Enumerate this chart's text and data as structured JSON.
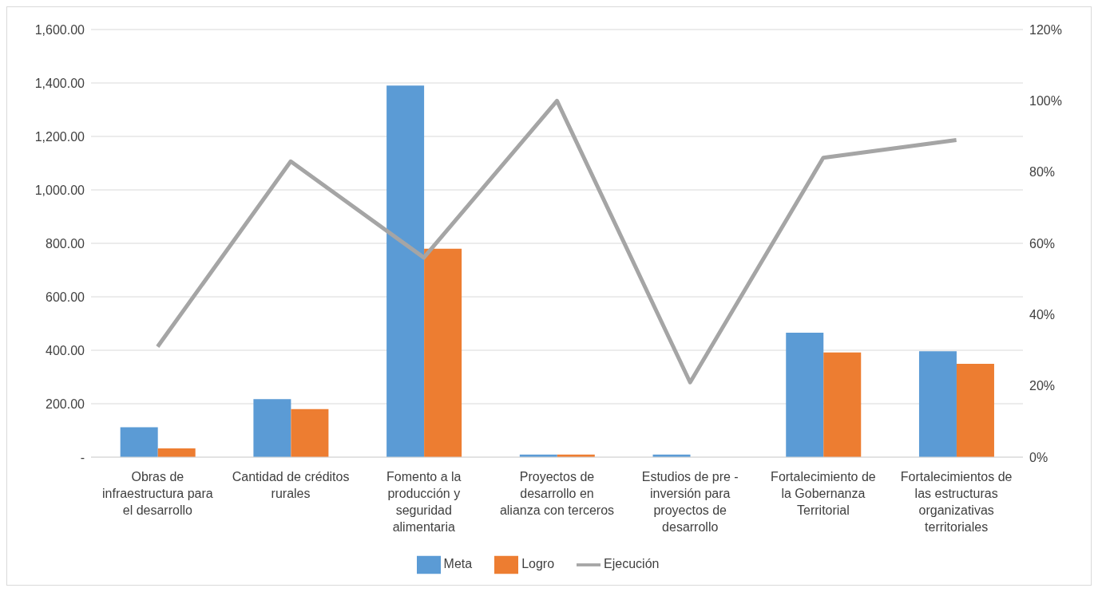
{
  "chart_data": {
    "type": "bar",
    "categories": [
      "Obras de infraestructura para el desarrollo",
      "Cantidad de créditos rurales",
      "Fomento a la producción y seguridad alimentaria",
      "Proyectos de desarrollo en alianza con terceros",
      "Estudios de pre - inversión para proyectos de desarrollo",
      "Fortalecimiento de la Gobernanza Territorial",
      "Fortalecimientos de las estructuras organizativas territoriales"
    ],
    "series": [
      {
        "name": "Meta",
        "color": "#5b9bd5",
        "values": [
          112,
          217,
          1390,
          10,
          10,
          466,
          396
        ]
      },
      {
        "name": "Logro",
        "color": "#ed7d31",
        "values": [
          33,
          180,
          780,
          10,
          0,
          392,
          349
        ]
      },
      {
        "name": "Ejecución",
        "type": "line",
        "axis": "y2",
        "color": "#a5a5a5",
        "values": [
          31,
          83,
          56,
          100,
          21,
          84,
          89
        ]
      }
    ],
    "ylim": [
      0,
      1600
    ],
    "yticks": [
      {
        "value": 0,
        "label": "-"
      },
      {
        "value": 200,
        "label": "200.00"
      },
      {
        "value": 400,
        "label": "400.00"
      },
      {
        "value": 600,
        "label": "600.00"
      },
      {
        "value": 800,
        "label": "800.00"
      },
      {
        "value": 1000,
        "label": "1,000.00"
      },
      {
        "value": 1200,
        "label": "1,200.00"
      },
      {
        "value": 1400,
        "label": "1,400.00"
      },
      {
        "value": 1600,
        "label": "1,600.00"
      }
    ],
    "y2lim": [
      0,
      120
    ],
    "y2ticks": [
      {
        "value": 0,
        "label": "0%"
      },
      {
        "value": 20,
        "label": "20%"
      },
      {
        "value": 40,
        "label": "40%"
      },
      {
        "value": 60,
        "label": "60%"
      },
      {
        "value": 80,
        "label": "80%"
      },
      {
        "value": 100,
        "label": "100%"
      },
      {
        "value": 120,
        "label": "120%"
      }
    ],
    "grid": "y",
    "legend": "bottom",
    "marker": "none"
  }
}
